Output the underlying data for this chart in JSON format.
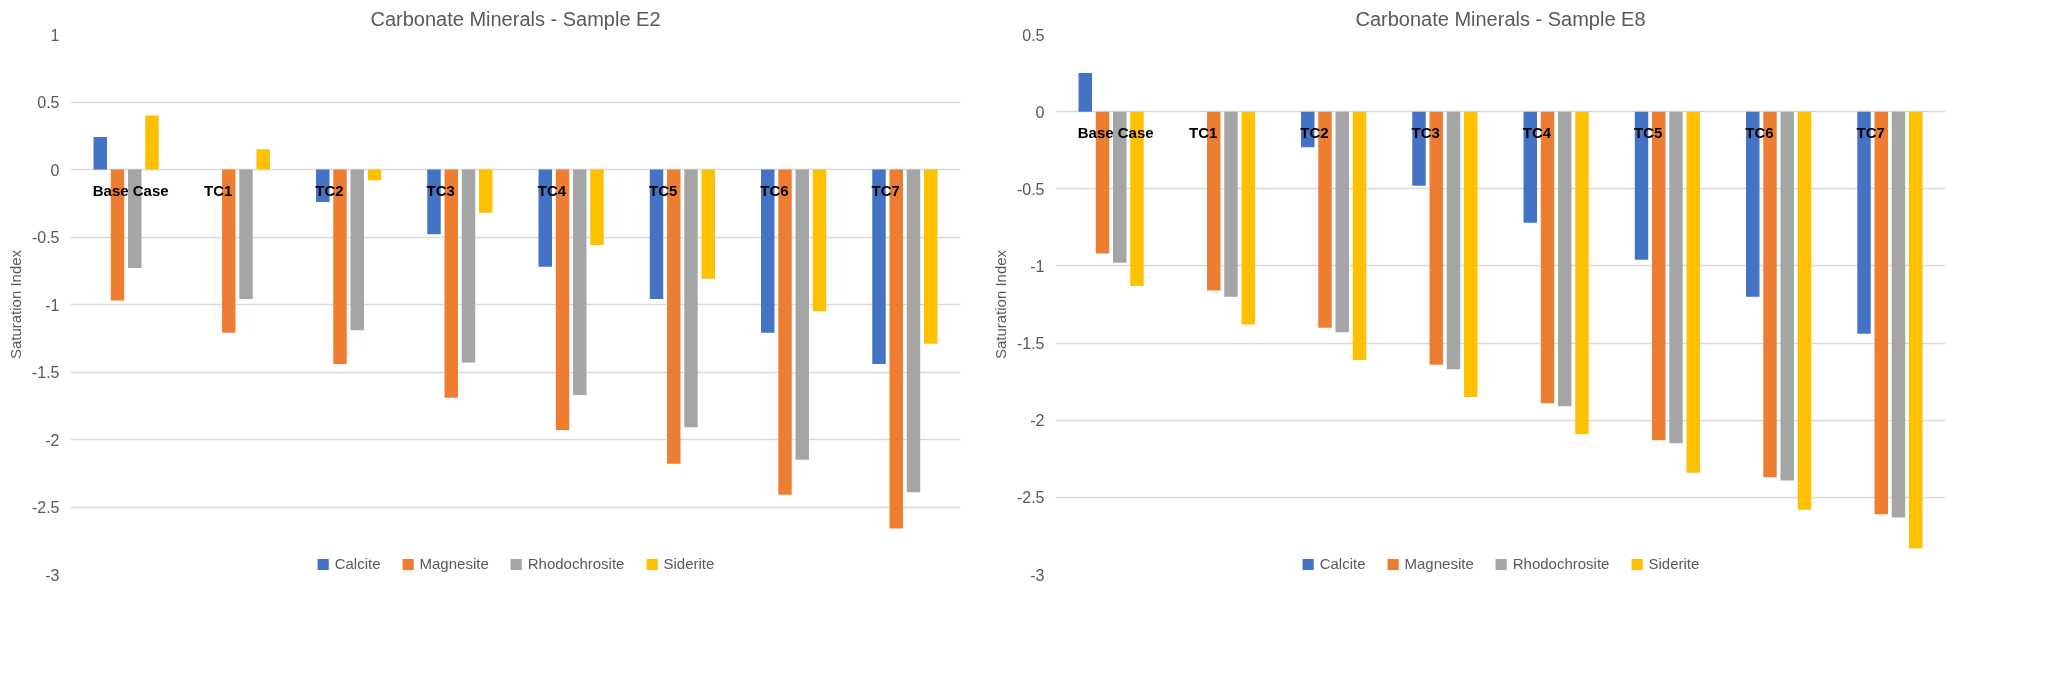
{
  "chart_data": [
    {
      "type": "bar",
      "title": "Carbonate Minerals - Sample E2",
      "ylabel": "Saturation Index",
      "categories": [
        "Base Case",
        "TC1",
        "TC2",
        "TC3",
        "TC4",
        "TC5",
        "TC6",
        "TC7"
      ],
      "series": [
        {
          "name": "Calcite",
          "color": "#4472c4",
          "values": [
            0.24,
            0,
            -0.24,
            -0.48,
            -0.72,
            -0.96,
            -1.21,
            -1.44
          ]
        },
        {
          "name": "Magnesite",
          "color": "#ed7d31",
          "values": [
            -0.97,
            -1.21,
            -1.44,
            -1.69,
            -1.93,
            -2.18,
            -2.41,
            -2.66
          ]
        },
        {
          "name": "Rhodochrosite",
          "color": "#a5a5a5",
          "values": [
            -0.73,
            -0.96,
            -1.19,
            -1.43,
            -1.67,
            -1.91,
            -2.15,
            -2.39
          ]
        },
        {
          "name": "Siderite",
          "color": "#ffc000",
          "values": [
            0.4,
            0.15,
            -0.08,
            -0.32,
            -0.56,
            -0.81,
            -1.05,
            -1.29
          ]
        }
      ],
      "ylim": [
        -3,
        1
      ],
      "yticks": [
        -3,
        -2.5,
        -2,
        -1.5,
        -1,
        -0.5,
        0,
        0.5,
        1
      ],
      "grid": "y",
      "legend": "bottom"
    },
    {
      "type": "bar",
      "title": "Carbonate Minerals - Sample E8",
      "ylabel": "Saturation Index",
      "categories": [
        "Base Case",
        "TC1",
        "TC2",
        "TC3",
        "TC4",
        "TC5",
        "TC6",
        "TC7"
      ],
      "series": [
        {
          "name": "Calcite",
          "color": "#4472c4",
          "values": [
            0.25,
            0,
            -0.23,
            -0.48,
            -0.72,
            -0.96,
            -1.2,
            -1.44
          ]
        },
        {
          "name": "Magnesite",
          "color": "#ed7d31",
          "values": [
            -0.92,
            -1.16,
            -1.4,
            -1.64,
            -1.89,
            -2.13,
            -2.37,
            -2.61
          ]
        },
        {
          "name": "Rhodochrosite",
          "color": "#a5a5a5",
          "values": [
            -0.98,
            -1.2,
            -1.43,
            -1.67,
            -1.91,
            -2.15,
            -2.39,
            -2.63
          ]
        },
        {
          "name": "Siderite",
          "color": "#ffc000",
          "values": [
            -1.13,
            -1.38,
            -1.61,
            -1.85,
            -2.09,
            -2.34,
            -2.58,
            -2.83
          ]
        }
      ],
      "ylim": [
        -3,
        0.5
      ],
      "yticks": [
        -3,
        -2.5,
        -2,
        -1.5,
        -1,
        -0.5,
        0,
        0.5
      ],
      "grid": "y",
      "legend": "bottom"
    }
  ]
}
